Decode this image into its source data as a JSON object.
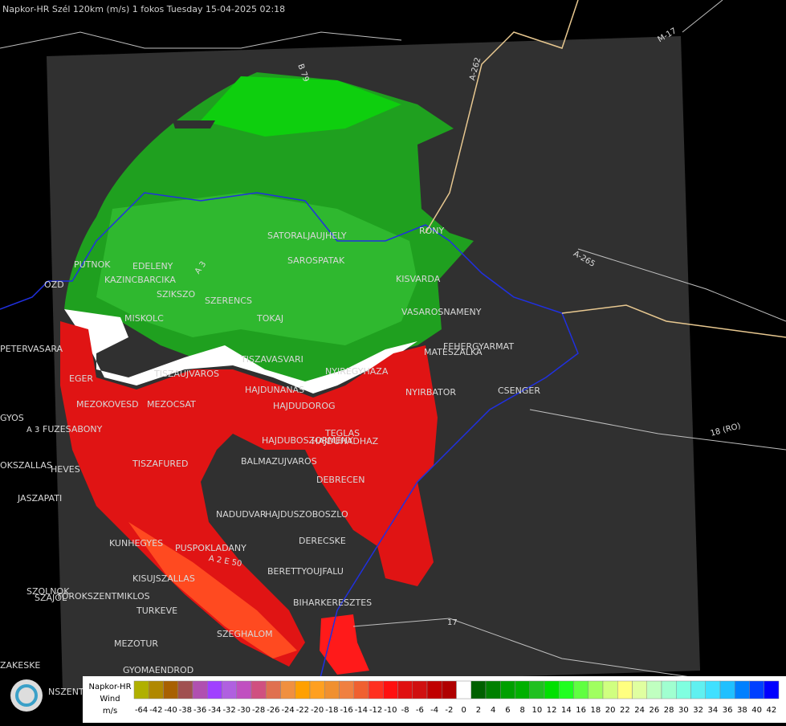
{
  "header": {
    "title": "Napkor-HR Szél 120km (m/s) 1 fokos Tuesday 15-04-2025 02:18"
  },
  "places": [
    "PUTNOK",
    "EDELENY",
    "KAZINCBARCIKA",
    "SZIKSZO",
    "MISKOLC",
    "SATORALJAUJHELY",
    "SAROSPATAK",
    "SZERENCS",
    "TOKAJ",
    "KISVARDA",
    "VASAROSNAMENY",
    "FEHERGYARMAT",
    "MATESZALKA",
    "CSENGER",
    "NYIRBATOR",
    "NYIREGYHAZA",
    "TISZAVASVARI",
    "TISZAUJVAROS",
    "EGER",
    "MEZOKOVESD",
    "MEZOCSAT",
    "HAJDUNANAS",
    "HAJDUDOROG",
    "HAJDUBOSZORMENY",
    "HAJDUHADHAZ",
    "BALMAZUJVAROS",
    "DEBRECEN",
    "TISZAFURED",
    "NADUDVAR",
    "HAJDUSZOBOSZLO",
    "DERECSKE",
    "KUNHEGYES",
    "PUSPOKLADANY",
    "BERETTYOUJFALU",
    "KISUJSZALLAS",
    "BIHARKERESZTES",
    "TOROKSZENTMIKLOS",
    "SZOLNOK",
    "TURKEVE",
    "SZEGHALOM",
    "MEZOTUR",
    "GYOMAENDROD",
    "OZD",
    "PETERVASARA",
    "GYOS",
    "FUZESABONY",
    "HEVES",
    "JASZAPATI",
    "SZAJOL",
    "TEGLAS",
    "RONY",
    "OKSZALLAS",
    "ZAKESKE",
    "NSZENTN"
  ],
  "roads": [
    "M-17",
    "A-262",
    "A-265",
    "18 (RO)",
    "17",
    "A 3",
    "B 79",
    "A 3",
    "A 2 E 50"
  ],
  "legend": {
    "title_lines": [
      "Napkor-HR",
      "Wind",
      "m/s"
    ],
    "ticks": [
      -64,
      -42,
      -40,
      -38,
      -36,
      -34,
      -32,
      -30,
      -28,
      -26,
      -24,
      -22,
      -20,
      -18,
      -16,
      -14,
      -12,
      -10,
      -8,
      -6,
      -4,
      -2,
      0,
      2,
      4,
      6,
      8,
      10,
      12,
      14,
      16,
      18,
      20,
      22,
      24,
      26,
      28,
      30,
      32,
      34,
      36,
      38,
      40,
      42
    ],
    "colors": [
      "#b0b000",
      "#b08800",
      "#a86000",
      "#a05050",
      "#b050b0",
      "#a040ff",
      "#b060e0",
      "#c050c0",
      "#d05080",
      "#e07050",
      "#f09040",
      "#ffa000",
      "#ffa020",
      "#f09030",
      "#f08040",
      "#f06030",
      "#ff3020",
      "#ff1010",
      "#e01010",
      "#d01010",
      "#c00000",
      "#b00000",
      "#ffffff",
      "#006000",
      "#008000",
      "#00a000",
      "#00b000",
      "#20c020",
      "#00e000",
      "#20ff20",
      "#60ff40",
      "#a0ff60",
      "#d0ff80",
      "#ffff80",
      "#e0ffa0",
      "#c0ffc0",
      "#a0ffd0",
      "#80ffe0",
      "#60f0f0",
      "#40e0ff",
      "#20c0ff",
      "#0080ff",
      "#0040ff",
      "#0000ff"
    ]
  }
}
